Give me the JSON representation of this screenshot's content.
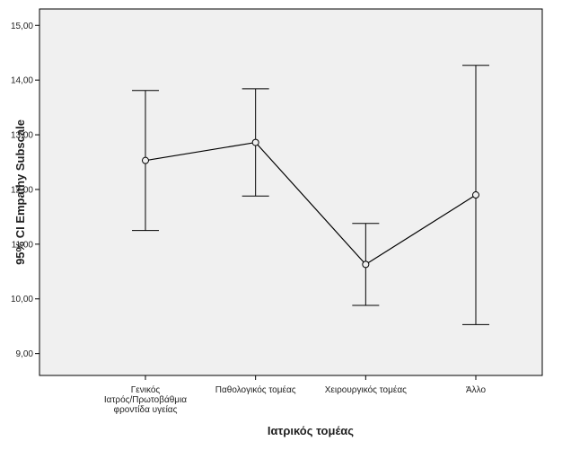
{
  "chart_data": {
    "type": "line",
    "subtype": "error-bar",
    "title": "",
    "xlabel": "Ιατρικός τομέας",
    "ylabel": "95% CI Empathy Subscale",
    "ylim": [
      8.6,
      15.3
    ],
    "yticks": [
      "9,00",
      "10,00",
      "11,00",
      "12,00",
      "13,00",
      "14,00",
      "15,00"
    ],
    "ytick_values": [
      9,
      10,
      11,
      12,
      13,
      14,
      15
    ],
    "categories": [
      [
        "Γενικός",
        "Ιατρός/Πρωτοβάθμια",
        "φροντίδα υγείας"
      ],
      [
        "Παθολογικός τομέας"
      ],
      [
        "Χειρουργικός τομέας"
      ],
      [
        "Άλλο"
      ]
    ],
    "series": [
      {
        "mean": [
          12.53,
          12.86,
          10.63,
          11.9
        ],
        "ci_lower": [
          11.25,
          11.88,
          9.88,
          9.53
        ],
        "ci_upper": [
          13.81,
          13.84,
          11.38,
          14.27
        ]
      }
    ],
    "grid": false,
    "colors": {
      "background": "#f0f0f0",
      "line": "#000000",
      "axis": "#000000"
    }
  }
}
